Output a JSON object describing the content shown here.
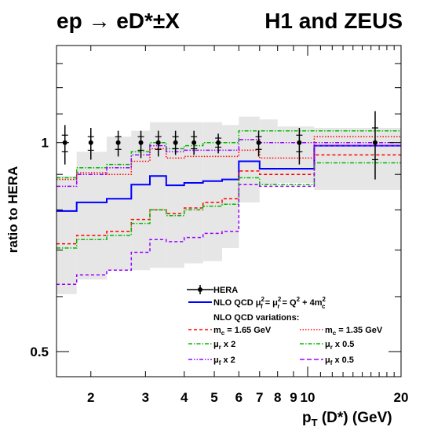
{
  "title_left": "ep → eD*±X",
  "title_right": "H1 and ZEUS",
  "chart_data": {
    "type": "line",
    "xscale": "log",
    "yscale": "log",
    "xlabel": "p_T (D*) (GeV)",
    "ylabel": "ratio to HERA",
    "xlim": [
      1.55,
      20
    ],
    "ylim": [
      0.46,
      1.38
    ],
    "x_ticks": [
      "2",
      "3",
      "4",
      "5",
      "6",
      "7",
      "8",
      "9",
      "10",
      "20"
    ],
    "y_ticks": [
      "0.5",
      "1"
    ],
    "bin_edges": [
      1.5,
      1.8,
      2.25,
      2.7,
      3.1,
      3.5,
      4.0,
      4.6,
      5.3,
      6.0,
      7.0,
      8.0,
      10.5,
      20.0
    ],
    "hera_points": {
      "name": "HERA",
      "x": [
        1.65,
        2.0,
        2.45,
        2.9,
        3.3,
        3.75,
        4.3,
        5.15,
        6.95,
        9.4,
        16.5
      ],
      "y": [
        1.0,
        1.0,
        1.0,
        1.0,
        1.0,
        1.0,
        1.0,
        1.0,
        1.0,
        1.0,
        1.0
      ],
      "err_up": [
        1.06,
        1.05,
        1.04,
        1.04,
        1.04,
        1.04,
        1.04,
        1.03,
        1.04,
        1.05,
        1.11
      ],
      "err_down": [
        0.93,
        0.945,
        0.955,
        0.95,
        0.955,
        0.96,
        0.96,
        0.965,
        0.955,
        0.93,
        0.885
      ],
      "err_up_inner": [
        1.025,
        1.02,
        1.02,
        1.02,
        1.02,
        1.02,
        1.02,
        1.015,
        1.02,
        1.025,
        1.05
      ],
      "err_down_inner": [
        0.97,
        0.975,
        0.978,
        0.975,
        0.978,
        0.98,
        0.98,
        0.985,
        0.978,
        0.97,
        0.945
      ]
    },
    "band": {
      "upper": [
        0.895,
        0.97,
        1.02,
        1.04,
        1.07,
        1.07,
        1.07,
        1.07,
        1.06,
        1.09,
        1.08,
        1.055,
        1.05
      ],
      "lower": [
        0.605,
        0.635,
        0.655,
        0.655,
        0.66,
        0.66,
        0.67,
        0.675,
        0.705,
        0.82,
        0.87,
        0.875,
        0.855
      ]
    },
    "series": [
      {
        "name": "NLO QCD μ_f² = μ_r² = Q² + 4m_c²",
        "color": "#0000ff",
        "style": "solid",
        "values": [
          0.797,
          0.82,
          0.83,
          0.87,
          0.895,
          0.868,
          0.875,
          0.88,
          0.885,
          0.94,
          0.917,
          0.917,
          0.99
        ]
      },
      {
        "name": "m_c = 1.65 GeV",
        "color": "#ff0000",
        "style": "dashed",
        "values": [
          0.715,
          0.735,
          0.745,
          0.775,
          0.8,
          0.79,
          0.805,
          0.82,
          0.83,
          0.91,
          0.9,
          0.9,
          0.96
        ]
      },
      {
        "name": "m_c = 1.35 GeV",
        "color": "#ff0000",
        "style": "dotted",
        "values": [
          0.885,
          0.905,
          0.9,
          0.94,
          0.98,
          0.95,
          0.955,
          0.955,
          0.955,
          0.975,
          0.95,
          0.95,
          1.02
        ]
      },
      {
        "name": "μ_r x 2",
        "color": "#00bb00",
        "style": "dashdot",
        "values": [
          0.705,
          0.725,
          0.735,
          0.765,
          0.8,
          0.785,
          0.8,
          0.81,
          0.815,
          0.89,
          0.87,
          0.87,
          0.935
        ]
      },
      {
        "name": "μ_r x 0.5",
        "color": "#00bb00",
        "style": "dashdot",
        "values": [
          0.89,
          0.92,
          0.93,
          0.97,
          1.0,
          0.98,
          0.99,
          1.0,
          1.0,
          1.04,
          1.04,
          1.04,
          1.04
        ]
      },
      {
        "name": "μ_f x 2",
        "color": "#9900ff",
        "style": "dashdotdot",
        "values": [
          0.865,
          0.9,
          0.92,
          0.96,
          0.99,
          0.97,
          0.975,
          0.975,
          0.975,
          1.01,
          1.0,
          1.0,
          1.0
        ]
      },
      {
        "name": "μ_f x 0.5",
        "color": "#9900ff",
        "style": "dashed",
        "values": [
          0.625,
          0.645,
          0.655,
          0.695,
          0.725,
          0.72,
          0.73,
          0.74,
          0.745,
          0.87,
          0.865,
          0.865,
          0.99
        ]
      }
    ],
    "legend": {
      "position": "bottom-right",
      "hera_label": "HERA",
      "nlo_label": "NLO QCD μ²f = μ²r = Q² + 4m²c",
      "variations_label": "NLO QCD variations:",
      "mc165_label": "m_c = 1.65 GeV",
      "mc135_label": "m_c = 1.35 GeV",
      "mur2_label": "μ_r x 2",
      "mur05_label": "μ_r x 0.5",
      "muf2_label": "μ_f x 2",
      "muf05_label": "μ_f x 0.5"
    },
    "colors": {
      "band": "#e6e6e6",
      "data": "#000000"
    }
  }
}
